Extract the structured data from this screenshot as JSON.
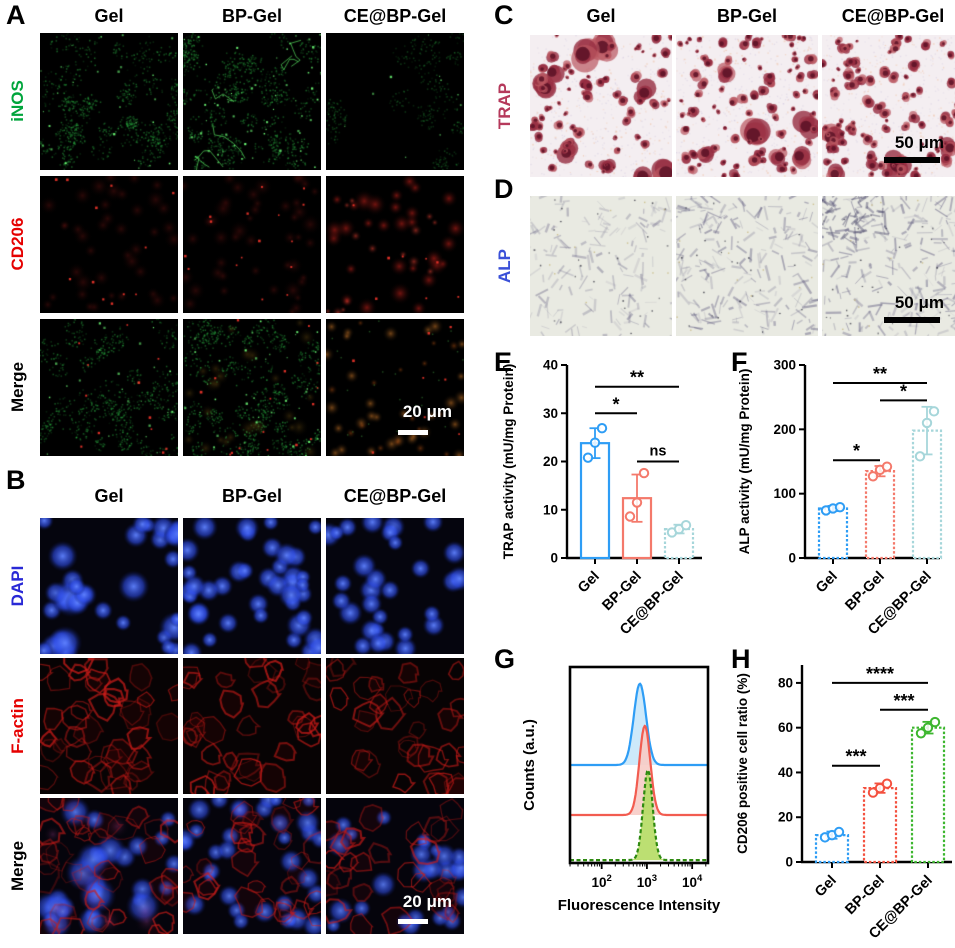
{
  "figure": {
    "groups": [
      "Gel",
      "BP-Gel",
      "CE@BP-Gel"
    ],
    "panels": {
      "A": {
        "label": "A",
        "rows": [
          {
            "label": "iNOS",
            "color": "#00a53c"
          },
          {
            "label": "CD206",
            "color": "#e50000"
          },
          {
            "label": "Merge",
            "color": "#000000"
          }
        ],
        "scale_bar": "20 μm"
      },
      "B": {
        "label": "B",
        "rows": [
          {
            "label": "DAPI",
            "color": "#2929d6"
          },
          {
            "label": "F-actin",
            "color": "#e50000"
          },
          {
            "label": "Merge",
            "color": "#000000"
          }
        ],
        "scale_bar": "20 μm"
      },
      "C": {
        "label": "C",
        "row_label": "TRAP",
        "row_color": "#b5395b",
        "scale_bar": "50 μm"
      },
      "D": {
        "label": "D",
        "row_label": "ALP",
        "row_color": "#3a50d8",
        "scale_bar": "50 μm"
      },
      "E": {
        "label": "E"
      },
      "F": {
        "label": "F"
      },
      "G": {
        "label": "G"
      },
      "H": {
        "label": "H"
      }
    }
  },
  "chart_data": [
    {
      "panel": "E",
      "type": "bar",
      "ylabel": "TRAP activity (mU/mg Protein)",
      "categories": [
        "Gel",
        "BP-Gel",
        "CE@BP-Gel"
      ],
      "values": [
        23.8,
        12.4,
        6.0
      ],
      "errors": [
        3.1,
        4.9,
        0.9
      ],
      "points": [
        [
          20.8,
          23.9,
          26.9
        ],
        [
          8.6,
          11.5,
          17.6
        ],
        [
          5.3,
          6.0,
          6.8
        ]
      ],
      "colors": [
        "#2e9df5",
        "#f4796b",
        "#a6d6da"
      ],
      "dashed": [
        false,
        false,
        true
      ],
      "ylim": [
        0,
        40
      ],
      "yticks": [
        0,
        10,
        20,
        30,
        40
      ],
      "significance": [
        {
          "a": 0,
          "b": 1,
          "label": "*",
          "y": 30
        },
        {
          "a": 0,
          "b": 2,
          "label": "**",
          "y": 35.5
        },
        {
          "a": 1,
          "b": 2,
          "label": "ns",
          "y": 20
        }
      ]
    },
    {
      "panel": "F",
      "type": "bar",
      "ylabel": "ALP activity (mU/mg Protein)",
      "categories": [
        "Gel",
        "BP-Gel",
        "CE@BP-Gel"
      ],
      "values": [
        77,
        135,
        198
      ],
      "errors": [
        4,
        8,
        37
      ],
      "points": [
        [
          74,
          77,
          79
        ],
        [
          127,
          137,
          142
        ],
        [
          158,
          210,
          228
        ]
      ],
      "colors": [
        "#2e9df5",
        "#f4796b",
        "#a6d6da"
      ],
      "dashed": [
        true,
        true,
        true
      ],
      "ylim": [
        0,
        300
      ],
      "yticks": [
        0,
        100,
        200,
        300
      ],
      "significance": [
        {
          "a": 0,
          "b": 1,
          "label": "*",
          "y": 152
        },
        {
          "a": 0,
          "b": 2,
          "label": "**",
          "y": 272
        },
        {
          "a": 1,
          "b": 2,
          "label": "*",
          "y": 245
        }
      ]
    },
    {
      "panel": "G",
      "type": "flow_histogram",
      "xlabel": "Fluorescence Intensity",
      "ylabel": "Counts (a.u.)",
      "x_scale": "log10",
      "xlim_log": [
        1.3,
        4.35
      ],
      "xticks_exp": [
        2,
        3,
        4
      ],
      "series": [
        {
          "color": "#2e9df5",
          "fill": "#c9e7fa",
          "peak_center": 700,
          "peak_sigma_log": 0.135,
          "baseline_frac": 0.5,
          "peak_top_frac": 0.085,
          "dashed": false
        },
        {
          "color": "#f25c50",
          "fill": "#f7cdc8",
          "peak_center": 900,
          "peak_sigma_log": 0.12,
          "baseline_frac": 0.755,
          "peak_top_frac": 0.3,
          "dashed": false
        },
        {
          "color": "#2e8a10",
          "fill": "#b6dc66",
          "peak_center": 1050,
          "peak_sigma_log": 0.105,
          "baseline_frac": 0.985,
          "peak_top_frac": 0.525,
          "dashed": true
        }
      ]
    },
    {
      "panel": "H",
      "type": "bar",
      "ylabel": "CD206 positive cell ratio (%)",
      "categories": [
        "Gel",
        "BP-Gel",
        "CE@BP-Gel"
      ],
      "values": [
        12,
        33,
        60
      ],
      "errors": [
        1.6,
        2.1,
        2.6
      ],
      "points": [
        [
          11,
          12,
          13.4
        ],
        [
          31,
          33,
          35
        ],
        [
          57.5,
          60,
          62.5
        ]
      ],
      "colors": [
        "#2e9df5",
        "#f4503e",
        "#3cb62e"
      ],
      "dashed": [
        true,
        true,
        true
      ],
      "ylim": [
        0,
        88
      ],
      "yticks": [
        0,
        20,
        40,
        60,
        80
      ],
      "significance": [
        {
          "a": 0,
          "b": 1,
          "label": "***",
          "y": 43
        },
        {
          "a": 0,
          "b": 2,
          "label": "****",
          "y": 80
        },
        {
          "a": 1,
          "b": 2,
          "label": "***",
          "y": 68
        }
      ]
    }
  ]
}
